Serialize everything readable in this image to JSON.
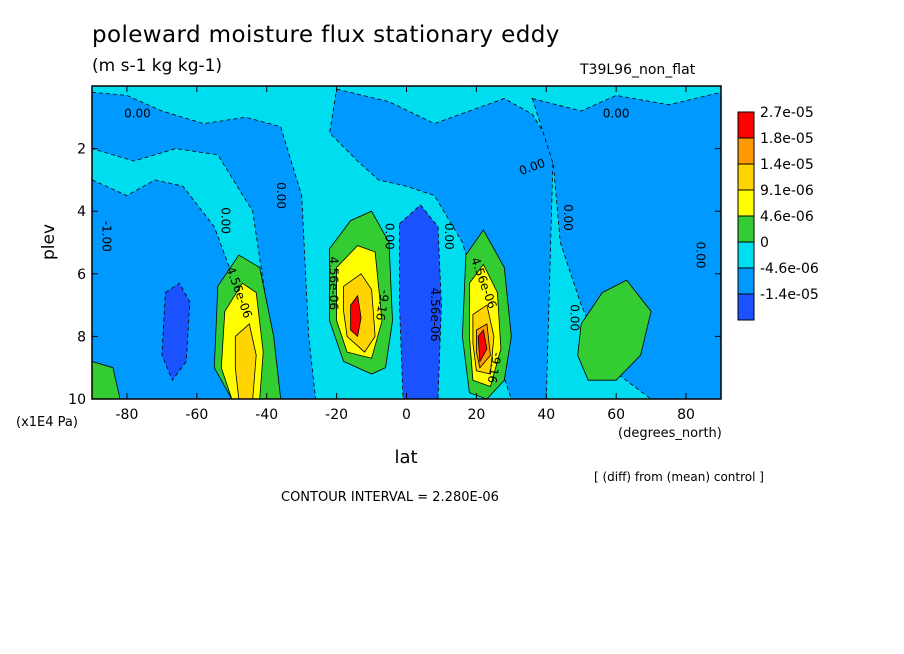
{
  "title": "poleward moisture flux stationary eddy",
  "units": "(m s-1 kg kg-1)",
  "run_label": "T39L96_non_flat",
  "diff_note": "[ (diff) from (mean) control ]",
  "contour_interval": "CONTOUR INTERVAL = 2.280E-06",
  "chart_data": {
    "type": "heatmap",
    "xlabel": "lat",
    "ylabel": "plev",
    "xunit": "(degrees_north)",
    "yunit": "(x1E4 Pa)",
    "xlim": [
      -90,
      90
    ],
    "ylim": [
      10,
      0
    ],
    "xticks": [
      -80,
      -60,
      -40,
      -20,
      0,
      20,
      40,
      60,
      80
    ],
    "yticks": [
      2,
      4,
      6,
      8,
      10
    ],
    "colorbar": {
      "levels": [
        "2.7e-05",
        "1.8e-05",
        "1.4e-05",
        "9.1e-06",
        "4.6e-06",
        "0",
        "-4.6e-06",
        "-1.4e-05"
      ],
      "colors": [
        "#ff0000",
        "#ff9900",
        "#ffd400",
        "#ffff00",
        "#33cc33",
        "#00ddee",
        "#0099ff",
        "#1a52ff"
      ]
    },
    "background_color": "#00ddee",
    "regions": [
      {
        "level": "-4.6e-06",
        "points": [
          [
            -90,
            3
          ],
          [
            -80,
            3.5
          ],
          [
            -72,
            3
          ],
          [
            -64,
            3.2
          ],
          [
            -55,
            4.5
          ],
          [
            -50,
            6
          ],
          [
            -47,
            8
          ],
          [
            -45,
            10
          ],
          [
            -90,
            10
          ]
        ]
      },
      {
        "level": "-4.6e-06",
        "points": [
          [
            -90,
            0.2
          ],
          [
            -80,
            0.3
          ],
          [
            -70,
            0.8
          ],
          [
            -58,
            1.2
          ],
          [
            -46,
            1
          ],
          [
            -36,
            1.3
          ],
          [
            -30,
            3.5
          ],
          [
            -28,
            8
          ],
          [
            -26,
            10
          ],
          [
            -38,
            10
          ],
          [
            -40,
            7
          ],
          [
            -44,
            4
          ],
          [
            -54,
            2.2
          ],
          [
            -66,
            2
          ],
          [
            -78,
            2.4
          ],
          [
            -90,
            2
          ]
        ]
      },
      {
        "level": "-4.6e-06",
        "points": [
          [
            -20,
            0.1
          ],
          [
            -5,
            0.5
          ],
          [
            8,
            1.2
          ],
          [
            18,
            0.8
          ],
          [
            28,
            0.4
          ],
          [
            36,
            0.9
          ],
          [
            42,
            2
          ],
          [
            40,
            10
          ],
          [
            30,
            10
          ],
          [
            24,
            8
          ],
          [
            16,
            5
          ],
          [
            8,
            3.5
          ],
          [
            0,
            3.2
          ],
          [
            -8,
            3
          ],
          [
            -14,
            2.4
          ],
          [
            -22,
            1.5
          ]
        ]
      },
      {
        "level": "-4.6e-06",
        "points": [
          [
            36,
            0.4
          ],
          [
            50,
            0.8
          ],
          [
            60,
            0.3
          ],
          [
            75,
            0.6
          ],
          [
            90,
            0.2
          ],
          [
            90,
            10
          ],
          [
            70,
            10
          ],
          [
            58,
            9
          ],
          [
            50,
            7
          ],
          [
            44,
            5
          ],
          [
            42,
            2.5
          ]
        ]
      },
      {
        "level": "-1.4e-05",
        "points": [
          [
            -69,
            6.6
          ],
          [
            -65,
            6.3
          ],
          [
            -62,
            6.9
          ],
          [
            -63,
            8.8
          ],
          [
            -67,
            9.4
          ],
          [
            -70,
            8.6
          ]
        ]
      },
      {
        "level": "-1.4e-05",
        "points": [
          [
            -2,
            4.4
          ],
          [
            4,
            3.8
          ],
          [
            9,
            4.5
          ],
          [
            10,
            7
          ],
          [
            9,
            10
          ],
          [
            -1,
            10
          ],
          [
            -2,
            7
          ]
        ]
      },
      {
        "level": "4.6e-06",
        "points": [
          [
            -54,
            6.4
          ],
          [
            -48,
            5.4
          ],
          [
            -42,
            5.8
          ],
          [
            -38,
            8
          ],
          [
            -36,
            10
          ],
          [
            -50,
            10
          ],
          [
            -55,
            9
          ]
        ]
      },
      {
        "level": "9.1e-06",
        "points": [
          [
            -52,
            7.2
          ],
          [
            -47,
            6.3
          ],
          [
            -43,
            6.6
          ],
          [
            -41,
            8.5
          ],
          [
            -42,
            10
          ],
          [
            -50,
            10
          ],
          [
            -53,
            9
          ]
        ]
      },
      {
        "level": "1.4e-05",
        "points": [
          [
            -49,
            8
          ],
          [
            -45,
            7.6
          ],
          [
            -43,
            8.6
          ],
          [
            -44,
            10
          ],
          [
            -48,
            10
          ],
          [
            -49,
            9
          ]
        ]
      },
      {
        "level": "4.6e-06",
        "points": [
          [
            -22,
            5.2
          ],
          [
            -16,
            4.3
          ],
          [
            -10,
            4
          ],
          [
            -5,
            5
          ],
          [
            -4,
            7.5
          ],
          [
            -6,
            9
          ],
          [
            -10,
            9.2
          ],
          [
            -18,
            8.8
          ],
          [
            -22,
            7.5
          ]
        ]
      },
      {
        "level": "9.1e-06",
        "points": [
          [
            -20,
            5.8
          ],
          [
            -14,
            5.1
          ],
          [
            -9,
            5.3
          ],
          [
            -7,
            7.5
          ],
          [
            -10,
            8.7
          ],
          [
            -17,
            8.5
          ],
          [
            -20,
            7.5
          ]
        ]
      },
      {
        "level": "1.4e-05",
        "points": [
          [
            -18,
            6.4
          ],
          [
            -13,
            6
          ],
          [
            -10,
            6.5
          ],
          [
            -9,
            8
          ],
          [
            -12,
            8.5
          ],
          [
            -17,
            8
          ],
          [
            -18,
            7.2
          ]
        ]
      },
      {
        "level": "2.7e-05",
        "points": [
          [
            -16,
            7
          ],
          [
            -14,
            6.7
          ],
          [
            -13,
            7.4
          ],
          [
            -14,
            8
          ],
          [
            -16,
            7.8
          ]
        ]
      },
      {
        "level": "4.6e-06",
        "points": [
          [
            17,
            5.4
          ],
          [
            22,
            4.6
          ],
          [
            28,
            5.8
          ],
          [
            30,
            8
          ],
          [
            28,
            9.4
          ],
          [
            23,
            10
          ],
          [
            18,
            9.8
          ],
          [
            16,
            8
          ]
        ]
      },
      {
        "level": "9.1e-06",
        "points": [
          [
            18,
            6.3
          ],
          [
            22,
            5.7
          ],
          [
            26,
            6.6
          ],
          [
            27,
            8.4
          ],
          [
            24,
            9.6
          ],
          [
            19,
            9.4
          ],
          [
            18,
            8
          ]
        ]
      },
      {
        "level": "1.4e-05",
        "points": [
          [
            19,
            7.3
          ],
          [
            23,
            7
          ],
          [
            25,
            8
          ],
          [
            24,
            9.2
          ],
          [
            20,
            9.1
          ],
          [
            19,
            8.2
          ]
        ]
      },
      {
        "level": "1.8e-05",
        "points": [
          [
            20,
            7.8
          ],
          [
            23,
            7.6
          ],
          [
            24,
            8.6
          ],
          [
            21,
            9
          ],
          [
            20,
            8.5
          ]
        ]
      },
      {
        "level": "2.7e-05",
        "points": [
          [
            20.5,
            8
          ],
          [
            22,
            7.8
          ],
          [
            23,
            8.4
          ],
          [
            21,
            8.8
          ]
        ]
      },
      {
        "level": "4.6e-06",
        "points": [
          [
            50,
            7.6
          ],
          [
            56,
            6.6
          ],
          [
            63,
            6.2
          ],
          [
            70,
            7.2
          ],
          [
            67,
            8.6
          ],
          [
            60,
            9.4
          ],
          [
            52,
            9.4
          ],
          [
            49,
            8.6
          ]
        ]
      },
      {
        "level": "4.6e-06",
        "points": [
          [
            -90,
            8.8
          ],
          [
            -84,
            9
          ],
          [
            -82,
            10
          ],
          [
            -90,
            10
          ]
        ]
      }
    ],
    "contour_labels": [
      {
        "text": "0.00",
        "x": -77,
        "y": 0.9,
        "angle": 0
      },
      {
        "text": "0.00",
        "x": 60,
        "y": 0.9,
        "angle": 0
      },
      {
        "text": "0.00",
        "x": 36,
        "y": 2.6,
        "angle": -20
      },
      {
        "text": "0.00",
        "x": -52,
        "y": 4.3,
        "angle": 90
      },
      {
        "text": "0.00",
        "x": -36,
        "y": 3.5,
        "angle": 90
      },
      {
        "text": "0.00",
        "x": -5,
        "y": 4.8,
        "angle": 90
      },
      {
        "text": "0.00",
        "x": 12,
        "y": 4.8,
        "angle": 90
      },
      {
        "text": "0.00",
        "x": 46,
        "y": 4.2,
        "angle": 90
      },
      {
        "text": "0.00",
        "x": 48,
        "y": 7.4,
        "angle": 90
      },
      {
        "text": "0.00",
        "x": 84,
        "y": 5.4,
        "angle": 90
      },
      {
        "text": "-1.00",
        "x": -86,
        "y": 4.8,
        "angle": 90
      },
      {
        "text": "4.56e-06",
        "x": -48,
        "y": 6.6,
        "angle": 70
      },
      {
        "text": "4.56e-06",
        "x": -21,
        "y": 6.3,
        "angle": 90
      },
      {
        "text": "4.56e-06",
        "x": 22,
        "y": 6.3,
        "angle": 70
      },
      {
        "text": "4.56e-06",
        "x": 8,
        "y": 7.3,
        "angle": 90
      },
      {
        "text": "-9.16",
        "x": -7,
        "y": 7,
        "angle": 100
      },
      {
        "text": "-9.16",
        "x": 25,
        "y": 9,
        "angle": 100
      }
    ]
  }
}
